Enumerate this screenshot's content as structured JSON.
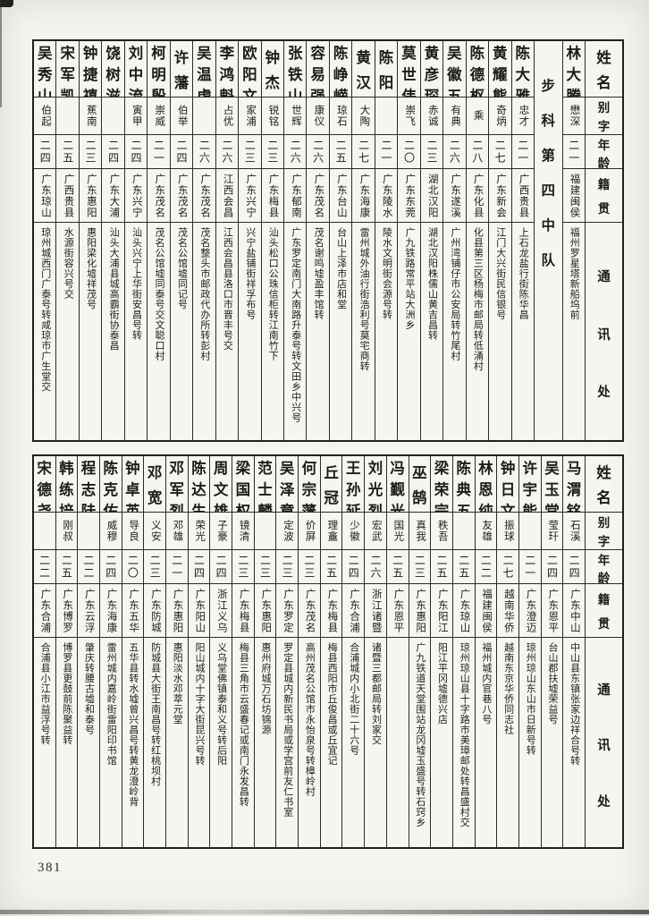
{
  "page_number": "381",
  "colors": {
    "paper": "#f5f4ef",
    "ink": "#1d1c1a",
    "border": "#2c2b28"
  },
  "headers": {
    "name": "姓名",
    "alias": "别字",
    "age": "年龄",
    "native": "籍贯",
    "contact": "通讯处"
  },
  "tables": [
    {
      "id": "top",
      "columns": [
        {
          "name": "林大腾",
          "alias": "懋深",
          "age": "二一",
          "native": "福建闽侯",
          "contact": "福州罗星塔新船坞前"
        },
        {
          "section": "步科第四中队"
        },
        {
          "name": "陈大雅",
          "alias": "忠才",
          "age": "二一",
          "native": "广西贵县",
          "contact": "上石龙盐行街陈华昌"
        },
        {
          "name": "黄耀熊",
          "alias": "奇炳",
          "age": "二七",
          "native": "广东新会",
          "contact": "江门大兴街民信银号"
        },
        {
          "name": "陈德枢",
          "alias": "乘",
          "age": "二八",
          "native": "广东化县",
          "contact": "化县第三区杨梅市邮局转低涌村"
        },
        {
          "name": "吴徽五",
          "alias": "有典",
          "age": "二六",
          "native": "广东遂溪",
          "contact": "广州湾铺仔市公安局转竹尾村"
        },
        {
          "name": "黄彦琛",
          "alias": "赤诚",
          "age": "二三",
          "native": "湖北汉阳",
          "contact": "湖北汉阳株儒山黄吉昌转"
        },
        {
          "name": "莫世伟",
          "alias": "崇飞",
          "age": "二〇",
          "native": "广东东莞",
          "contact": "广九铁路常平站大洲乡"
        },
        {
          "name": "陈阳",
          "alias": "",
          "age": "二一",
          "native": "广东陵水",
          "contact": "陵水文明街会源号转"
        },
        {
          "name": "黄汉",
          "alias": "大陶",
          "age": "二七",
          "native": "广东海康",
          "contact": "雷州城外油行街浩利号莫宅商转"
        },
        {
          "name": "陈峥嵘",
          "alias": "琼石",
          "age": "二五",
          "native": "广东台山",
          "contact": "台山上泽市店和堂"
        },
        {
          "name": "容易强",
          "alias": "康仪",
          "age": "二六",
          "native": "广东茂名",
          "contact": "茂名谢鸣墟盈丰馆转"
        },
        {
          "name": "张铁山",
          "alias": "世辉",
          "age": "二六",
          "native": "广东郁南",
          "contact": "广东罗定南门大南路升泰号转文田乡中兴号"
        },
        {
          "name": "钟杰",
          "alias": "锐铭",
          "age": "二三",
          "native": "广东梅县",
          "contact": "汕头松口公珠信柜转江南竹下"
        },
        {
          "name": "欧阳文",
          "alias": "家浦",
          "age": "二三",
          "native": "广东兴宁",
          "contact": "兴宁盐铺街祥孚布号"
        },
        {
          "name": "李鸿魁",
          "alias": "占优",
          "age": "二六",
          "native": "江西会昌",
          "contact": "江西会昌县洛口市晋丰号交"
        },
        {
          "name": "吴温虎",
          "alias": "",
          "age": "二六",
          "native": "广东茂名",
          "contact": "茂名整头市邮政代办所转彭村"
        },
        {
          "name": "许藩",
          "alias": "伯举",
          "age": "二四",
          "native": "广东茂名",
          "contact": "茂名公馆墟同记号"
        },
        {
          "name": "柯明殷",
          "alias": "崇威",
          "age": "二一",
          "native": "广东茂名",
          "contact": "茂名公馆墟同泰号交文聪口村"
        },
        {
          "name": "刘中流",
          "alias": "寅甲",
          "age": "二四",
          "native": "广东兴宁",
          "contact": "汕头兴宁上华街安昌号转"
        },
        {
          "name": "饶树滋",
          "alias": "",
          "age": "二四",
          "native": "广东大浦",
          "contact": "汕头大浦县城高霸街协泰昌"
        },
        {
          "name": "钟捷禧",
          "alias": "蕉南",
          "age": "二三",
          "native": "广东惠阳",
          "contact": "惠阳梁化墟祥茂号"
        },
        {
          "name": "宋军凯",
          "alias": "",
          "age": "二五",
          "native": "广西贵县",
          "contact": "水源街容兴号交"
        },
        {
          "name": "吴秀山",
          "alias": "伯起",
          "age": "二四",
          "native": "广东琼山",
          "contact": "琼州城西门广泰号转咸琼市广生堂交"
        }
      ]
    },
    {
      "id": "bottom",
      "columns": [
        {
          "name": "马渭铭",
          "alias": "石溪",
          "age": "二四",
          "native": "广东中山",
          "contact": "中山县东镇张家边祥合号转"
        },
        {
          "name": "吴玉堂",
          "alias": "莹玕",
          "age": "二四",
          "native": "广东恩平",
          "contact": "台山郡扶墟荣益号"
        },
        {
          "name": "许宇能",
          "alias": "",
          "age": "二一",
          "native": "广东澄迈",
          "contact": "琼州琼山东山市日新号转"
        },
        {
          "name": "钟日文",
          "alias": "振球",
          "age": "二七",
          "native": "越南华侨",
          "contact": "越南东京华侨同志社"
        },
        {
          "name": "林恩纯",
          "alias": "友雄",
          "age": "二二",
          "native": "福建闽侯",
          "contact": "福州城内官巷八号"
        },
        {
          "name": "陈典五",
          "alias": "",
          "age": "二五",
          "native": "广东琼山",
          "contact": "琼州琼山县十字路市美璋邮处转昌盛村交"
        },
        {
          "name": "梁荣宗",
          "alias": "秩吾",
          "age": "二五",
          "native": "广东阳江",
          "contact": "阳江平冈墟德兴店"
        },
        {
          "name": "巫鹄",
          "alias": "真我",
          "age": "二三",
          "native": "广东惠阳",
          "contact": "广九铁道天堂围站龙冈墟玉盛号转石窍乡"
        },
        {
          "name": "冯觐光",
          "alias": "国光",
          "age": "二五",
          "native": "广东恩平",
          "contact": ""
        },
        {
          "name": "刘光烈",
          "alias": "宏武",
          "age": "二六",
          "native": "浙江诸暨",
          "contact": "诸暨三都邮局转刘家交"
        },
        {
          "name": "王孙延",
          "alias": "少徽",
          "age": "二四",
          "native": "广东合浦",
          "contact": "合浦城内小北街二十六号"
        },
        {
          "name": "丘冠",
          "alias": "理盫",
          "age": "二五",
          "native": "广东梅县",
          "contact": "梅县西阳市丘俊昌或丘宜记"
        },
        {
          "name": "何宗藩",
          "alias": "价屏",
          "age": "二三",
          "native": "广东茂名",
          "contact": "高州茂名公馆市永怡泉号转樟岭村"
        },
        {
          "name": "吴泽章",
          "alias": "定波",
          "age": "二三",
          "native": "广东罗定",
          "contact": "罗定县城内新民书局或学宫前友仁书室"
        },
        {
          "name": "范士麟",
          "alias": "",
          "age": "二三",
          "native": "广东惠阳",
          "contact": "惠州府城万石坊锦源"
        },
        {
          "name": "梁国权",
          "alias": "镜清",
          "age": "二三",
          "native": "广东梅县",
          "contact": "梅县三角市云盛春记或南门永发昌转"
        },
        {
          "name": "周文雄",
          "alias": "子豪",
          "age": "二四",
          "native": "浙江义乌",
          "contact": "义乌堂佛镇泰和义号转后阳"
        },
        {
          "name": "陈达生",
          "alias": "荣光",
          "age": "二四",
          "native": "广东阳山",
          "contact": "阳山城内十字大街昆兴号转"
        },
        {
          "name": "邓军烈",
          "alias": "邓雄",
          "age": "二一",
          "native": "广东惠阳",
          "contact": "惠阳淡水邓萃元堂"
        },
        {
          "name": "邓宽",
          "alias": "义安",
          "age": "二三",
          "native": "广东防城",
          "contact": "防城县大街王南昌号转红桃坝村"
        },
        {
          "name": "钟卓英",
          "alias": "导良",
          "age": "二〇",
          "native": "广东五华",
          "contact": "五华县转水墟曾兴昌号转黄龙澄岭背"
        },
        {
          "name": "陈克佑",
          "alias": "威穆",
          "age": "二四",
          "native": "广东海康",
          "contact": "雷州城内嘉岭街雷阳印书馆"
        },
        {
          "name": "程志陆",
          "alias": "",
          "age": "二二",
          "native": "广东云浮",
          "contact": "肇庆转腰古墟和泰号"
        },
        {
          "name": "韩练培",
          "alias": "刚叔",
          "age": "二五",
          "native": "广东博罗",
          "contact": "博罗县更鼓前陈聚益转"
        },
        {
          "name": "宋德尧",
          "alias": "",
          "age": "二二",
          "native": "广东合浦",
          "contact": "合浦县小江市益浮号转"
        }
      ]
    }
  ]
}
